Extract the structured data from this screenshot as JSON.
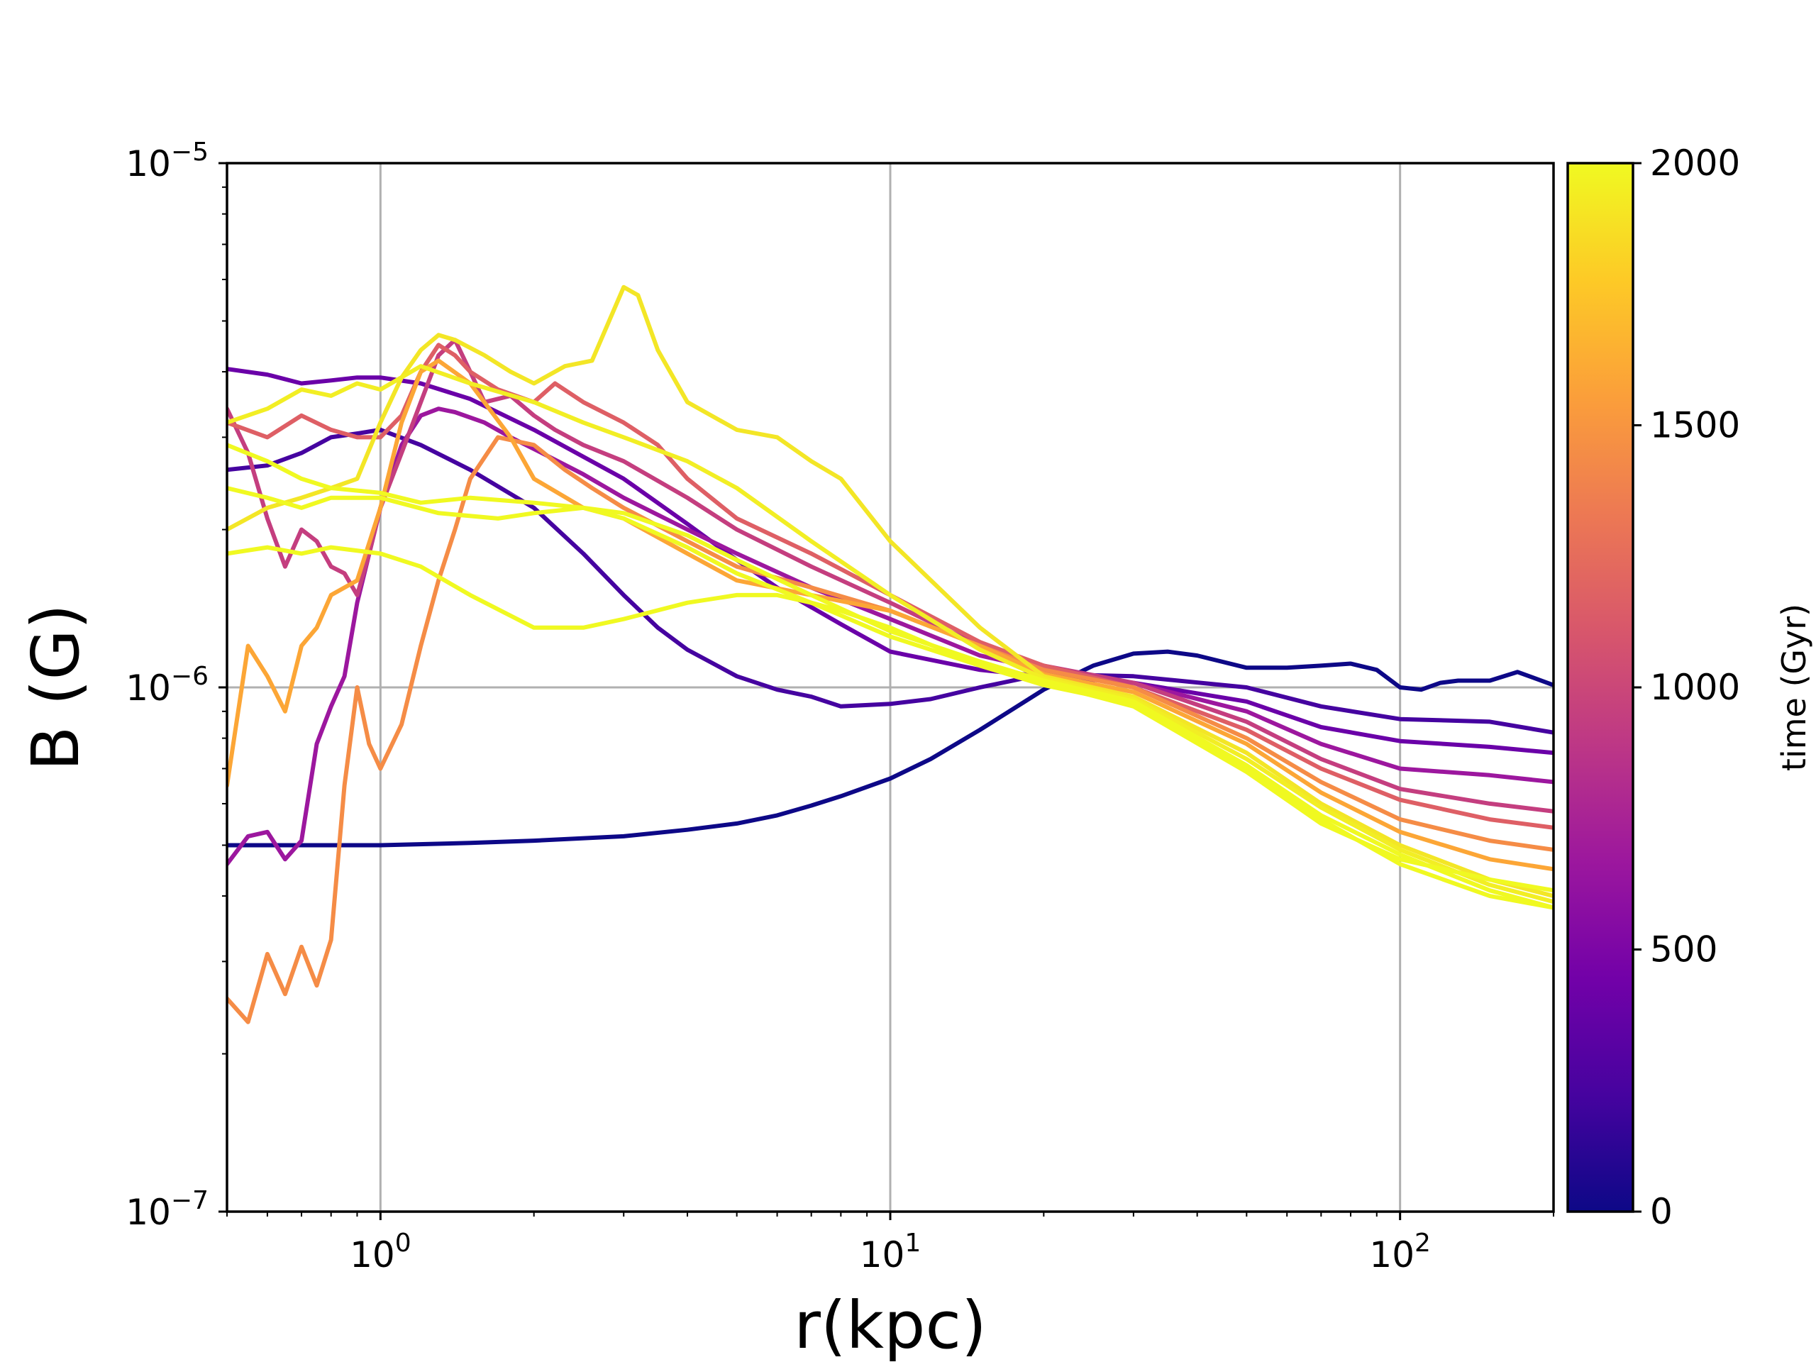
{
  "chart_data": {
    "type": "line",
    "xlabel": "r(kpc)",
    "ylabel": "B (G)",
    "xscale": "log",
    "yscale": "log",
    "xlim": [
      0.5,
      200
    ],
    "ylim": [
      1e-07,
      1e-05
    ],
    "grid": true,
    "x_ticks": [
      {
        "value": 1,
        "base": "10",
        "exp": "0"
      },
      {
        "value": 10,
        "base": "10",
        "exp": "1"
      },
      {
        "value": 100,
        "base": "10",
        "exp": "2"
      }
    ],
    "y_ticks": [
      {
        "value": 1e-07,
        "base": "10",
        "exp": "−7"
      },
      {
        "value": 1e-06,
        "base": "10",
        "exp": "−6"
      },
      {
        "value": 1e-05,
        "base": "10",
        "exp": "−5"
      }
    ],
    "colorbar": {
      "label": "time (Gyr)",
      "range": [
        0,
        2000
      ],
      "ticks": [
        "0",
        "500",
        "1000",
        "1500",
        "2000"
      ],
      "colormap": [
        "#0d0887",
        "#46039f",
        "#7201a8",
        "#9c179e",
        "#bd3786",
        "#d8576b",
        "#ed7953",
        "#fb9f3a",
        "#fdca26",
        "#f0f921"
      ]
    },
    "series": [
      {
        "time": 0,
        "color": "#0d0887",
        "x": [
          0.5,
          0.7,
          1.0,
          1.5,
          2,
          3,
          4,
          5,
          6,
          7,
          8,
          10,
          12,
          15,
          20,
          25,
          30,
          35,
          40,
          50,
          60,
          70,
          80,
          90,
          100,
          110,
          120,
          130,
          150,
          170,
          200
        ],
        "y": [
          5e-07,
          5e-07,
          5e-07,
          5.05e-07,
          5.1e-07,
          5.2e-07,
          5.35e-07,
          5.5e-07,
          5.7e-07,
          5.95e-07,
          6.2e-07,
          6.7e-07,
          7.3e-07,
          8.3e-07,
          9.9e-07,
          1.1e-06,
          1.16e-06,
          1.17e-06,
          1.15e-06,
          1.09e-06,
          1.09e-06,
          1.1e-06,
          1.11e-06,
          1.08e-06,
          1e-06,
          9.9e-07,
          1.02e-06,
          1.03e-06,
          1.03e-06,
          1.07e-06,
          1.01e-06
        ]
      },
      {
        "time": 250,
        "color": "#4503a0",
        "x": [
          0.5,
          0.6,
          0.7,
          0.8,
          0.9,
          1.0,
          1.2,
          1.5,
          2,
          2.5,
          3,
          3.5,
          4,
          5,
          6,
          7,
          8,
          10,
          12,
          15,
          20,
          30,
          50,
          70,
          100,
          150,
          200
        ],
        "y": [
          2.6e-06,
          2.65e-06,
          2.8e-06,
          3e-06,
          3.05e-06,
          3.1e-06,
          2.9e-06,
          2.6e-06,
          2.2e-06,
          1.8e-06,
          1.5e-06,
          1.3e-06,
          1.18e-06,
          1.05e-06,
          9.9e-07,
          9.6e-07,
          9.2e-07,
          9.3e-07,
          9.5e-07,
          1e-06,
          1.06e-06,
          1.05e-06,
          1e-06,
          9.2e-07,
          8.7e-07,
          8.6e-07,
          8.2e-07
        ]
      },
      {
        "time": 450,
        "color": "#6a00a8",
        "x": [
          0.5,
          0.6,
          0.7,
          0.8,
          0.9,
          1.0,
          1.2,
          1.5,
          2,
          3,
          4,
          5,
          6,
          8,
          10,
          15,
          20,
          30,
          50,
          70,
          100,
          150,
          200
        ],
        "y": [
          4.05e-06,
          3.95e-06,
          3.8e-06,
          3.85e-06,
          3.9e-06,
          3.9e-06,
          3.8e-06,
          3.55e-06,
          3.1e-06,
          2.5e-06,
          2.05e-06,
          1.75e-06,
          1.55e-06,
          1.32e-06,
          1.17e-06,
          1.08e-06,
          1.05e-06,
          1.02e-06,
          9.4e-07,
          8.4e-07,
          7.9e-07,
          7.7e-07,
          7.5e-07
        ]
      },
      {
        "time": 700,
        "color": "#9c179e",
        "x": [
          0.5,
          0.55,
          0.6,
          0.65,
          0.7,
          0.75,
          0.8,
          0.85,
          0.9,
          1.0,
          1.1,
          1.2,
          1.3,
          1.4,
          1.6,
          1.8,
          2,
          2.5,
          3,
          4,
          5,
          7,
          10,
          15,
          20,
          30,
          50,
          70,
          100,
          150,
          200
        ],
        "y": [
          4.6e-07,
          5.2e-07,
          5.3e-07,
          4.7e-07,
          5.1e-07,
          7.8e-07,
          9.2e-07,
          1.05e-06,
          1.45e-06,
          2.2e-06,
          2.9e-06,
          3.3e-06,
          3.4e-06,
          3.35e-06,
          3.2e-06,
          3e-06,
          2.85e-06,
          2.55e-06,
          2.3e-06,
          2e-06,
          1.8e-06,
          1.55e-06,
          1.35e-06,
          1.15e-06,
          1.08e-06,
          1.02e-06,
          9e-07,
          7.8e-07,
          7e-07,
          6.8e-07,
          6.6e-07
        ]
      },
      {
        "time": 1050,
        "color": "#c43e7f",
        "x": [
          0.5,
          0.55,
          0.6,
          0.65,
          0.7,
          0.75,
          0.8,
          0.85,
          0.9,
          0.95,
          1.0,
          1.1,
          1.2,
          1.3,
          1.4,
          1.5,
          1.6,
          1.8,
          2,
          2.2,
          2.5,
          3,
          4,
          5,
          7,
          10,
          15,
          20,
          30,
          50,
          70,
          100,
          150,
          200
        ],
        "y": [
          3.4e-06,
          2.8e-06,
          2.1e-06,
          1.7e-06,
          2e-06,
          1.9e-06,
          1.7e-06,
          1.65e-06,
          1.5e-06,
          1.8e-06,
          2.2e-06,
          2.8e-06,
          3.5e-06,
          4.3e-06,
          4.6e-06,
          4e-06,
          3.5e-06,
          3.6e-06,
          3.3e-06,
          3.1e-06,
          2.9e-06,
          2.7e-06,
          2.3e-06,
          2e-06,
          1.7e-06,
          1.45e-06,
          1.2e-06,
          1.1e-06,
          1.02e-06,
          8.6e-07,
          7.3e-07,
          6.4e-07,
          6e-07,
          5.8e-07
        ]
      },
      {
        "time": 1300,
        "color": "#de5f65",
        "x": [
          0.5,
          0.6,
          0.7,
          0.8,
          0.9,
          1.0,
          1.1,
          1.2,
          1.3,
          1.4,
          1.5,
          1.7,
          2,
          2.2,
          2.5,
          3,
          3.5,
          4,
          5,
          7,
          10,
          15,
          20,
          30,
          50,
          70,
          100,
          150,
          200
        ],
        "y": [
          3.2e-06,
          3e-06,
          3.3e-06,
          3.1e-06,
          3e-06,
          3e-06,
          3.3e-06,
          4e-06,
          4.5e-06,
          4.3e-06,
          4e-06,
          3.7e-06,
          3.5e-06,
          3.8e-06,
          3.5e-06,
          3.2e-06,
          2.9e-06,
          2.5e-06,
          2.1e-06,
          1.8e-06,
          1.5e-06,
          1.22e-06,
          1.1e-06,
          1e-06,
          8.3e-07,
          7e-07,
          6.1e-07,
          5.6e-07,
          5.4e-07
        ]
      },
      {
        "time": 1450,
        "color": "#f58c46",
        "x": [
          0.5,
          0.55,
          0.6,
          0.65,
          0.7,
          0.75,
          0.8,
          0.85,
          0.9,
          0.95,
          1.0,
          1.1,
          1.2,
          1.3,
          1.4,
          1.5,
          1.7,
          2,
          2.3,
          2.6,
          3,
          4,
          5,
          7,
          10,
          15,
          20,
          30,
          50,
          70,
          100,
          150,
          200
        ],
        "y": [
          2.55e-07,
          2.3e-07,
          3.1e-07,
          2.6e-07,
          3.2e-07,
          2.7e-07,
          3.3e-07,
          6.5e-07,
          1e-06,
          7.8e-07,
          7e-07,
          8.5e-07,
          1.2e-06,
          1.6e-06,
          2e-06,
          2.5e-06,
          3e-06,
          2.9e-06,
          2.6e-06,
          2.4e-06,
          2.2e-06,
          1.9e-06,
          1.7e-06,
          1.55e-06,
          1.4e-06,
          1.2e-06,
          1.08e-06,
          1e-06,
          8e-07,
          6.6e-07,
          5.6e-07,
          5.1e-07,
          4.9e-07
        ]
      },
      {
        "time": 1550,
        "color": "#fca636",
        "x": [
          0.5,
          0.55,
          0.6,
          0.65,
          0.7,
          0.75,
          0.8,
          0.9,
          1.0,
          1.1,
          1.2,
          1.3,
          1.5,
          1.8,
          2,
          2.5,
          3,
          4,
          5,
          7,
          10,
          15,
          20,
          30,
          50,
          70,
          100,
          150,
          200
        ],
        "y": [
          6.5e-07,
          1.2e-06,
          1.05e-06,
          9e-07,
          1.2e-06,
          1.3e-06,
          1.5e-06,
          1.6e-06,
          2.2e-06,
          3.2e-06,
          4e-06,
          4.2e-06,
          3.8e-06,
          3e-06,
          2.5e-06,
          2.2e-06,
          2.1e-06,
          1.8e-06,
          1.6e-06,
          1.5e-06,
          1.4e-06,
          1.2e-06,
          1.06e-06,
          9.8e-07,
          7.8e-07,
          6.3e-07,
          5.3e-07,
          4.7e-07,
          4.5e-07
        ]
      },
      {
        "time": 1750,
        "color": "#f3e626",
        "x": [
          0.5,
          0.6,
          0.7,
          0.8,
          0.9,
          1.0,
          1.1,
          1.2,
          1.3,
          1.4,
          1.6,
          1.8,
          2,
          2.3,
          2.6,
          3.0,
          3.2,
          3.5,
          4,
          5,
          6,
          7,
          8,
          10,
          15,
          20,
          30,
          50,
          70,
          100,
          150,
          200
        ],
        "y": [
          2e-06,
          2.2e-06,
          2.3e-06,
          2.4e-06,
          2.5e-06,
          3.2e-06,
          3.9e-06,
          4.4e-06,
          4.7e-06,
          4.6e-06,
          4.3e-06,
          4e-06,
          3.8e-06,
          4.1e-06,
          4.2e-06,
          5.8e-06,
          5.6e-06,
          4.4e-06,
          3.5e-06,
          3.1e-06,
          3e-06,
          2.7e-06,
          2.5e-06,
          1.9e-06,
          1.3e-06,
          1.05e-06,
          9.6e-07,
          7.5e-07,
          6e-07,
          5e-07,
          4.3e-07,
          4e-07
        ]
      },
      {
        "time": 1850,
        "color": "#f2ee24",
        "x": [
          0.5,
          0.6,
          0.7,
          0.8,
          0.9,
          1.0,
          1.2,
          1.5,
          2,
          2.5,
          3,
          4,
          5,
          7,
          10,
          15,
          20,
          30,
          50,
          70,
          100,
          150,
          200
        ],
        "y": [
          3.2e-06,
          3.4e-06,
          3.7e-06,
          3.6e-06,
          3.8e-06,
          3.7e-06,
          4.1e-06,
          3.8e-06,
          3.5e-06,
          3.2e-06,
          3e-06,
          2.7e-06,
          2.4e-06,
          1.9e-06,
          1.5e-06,
          1.18e-06,
          1.04e-06,
          9.5e-07,
          7.3e-07,
          5.9e-07,
          4.9e-07,
          4.2e-07,
          3.9e-07
        ]
      },
      {
        "time": 1920,
        "color": "#f0f921",
        "x": [
          0.5,
          0.6,
          0.7,
          0.8,
          1.0,
          1.3,
          1.7,
          2,
          2.5,
          3,
          4,
          5,
          7,
          10,
          15,
          20,
          30,
          50,
          70,
          100,
          150,
          200
        ],
        "y": [
          2.4e-06,
          2.3e-06,
          2.2e-06,
          2.3e-06,
          2.3e-06,
          2.15e-06,
          2.1e-06,
          2.15e-06,
          2.2e-06,
          2.15e-06,
          1.95e-06,
          1.75e-06,
          1.5e-06,
          1.28e-06,
          1.12e-06,
          1.03e-06,
          9.4e-07,
          7.1e-07,
          5.7e-07,
          4.8e-07,
          4.1e-07,
          3.8e-07
        ]
      },
      {
        "time": 1960,
        "color": "#f0f921",
        "x": [
          0.5,
          0.6,
          0.7,
          0.8,
          1.0,
          1.2,
          1.5,
          2,
          2.5,
          3,
          4,
          5,
          6,
          7,
          8,
          10,
          15,
          20,
          30,
          50,
          70,
          100,
          150,
          200
        ],
        "y": [
          1.8e-06,
          1.85e-06,
          1.8e-06,
          1.85e-06,
          1.8e-06,
          1.7e-06,
          1.5e-06,
          1.3e-06,
          1.3e-06,
          1.35e-06,
          1.45e-06,
          1.5e-06,
          1.5e-06,
          1.45e-06,
          1.4e-06,
          1.3e-06,
          1.1e-06,
          1.01e-06,
          9.3e-07,
          7e-07,
          5.6e-07,
          4.6e-07,
          4e-07,
          3.8e-07
        ]
      },
      {
        "time": 2000,
        "color": "#f0f921",
        "x": [
          0.5,
          0.6,
          0.7,
          0.8,
          1.0,
          1.2,
          1.5,
          2,
          2.5,
          3,
          4,
          5,
          7,
          10,
          15,
          20,
          30,
          50,
          70,
          100,
          150,
          200
        ],
        "y": [
          2.9e-06,
          2.7e-06,
          2.5e-06,
          2.4e-06,
          2.35e-06,
          2.25e-06,
          2.3e-06,
          2.25e-06,
          2.2e-06,
          2.1e-06,
          1.85e-06,
          1.65e-06,
          1.45e-06,
          1.25e-06,
          1.1e-06,
          1.02e-06,
          9.2e-07,
          6.9e-07,
          5.5e-07,
          4.7e-07,
          4.3e-07,
          4.1e-07
        ]
      }
    ]
  }
}
